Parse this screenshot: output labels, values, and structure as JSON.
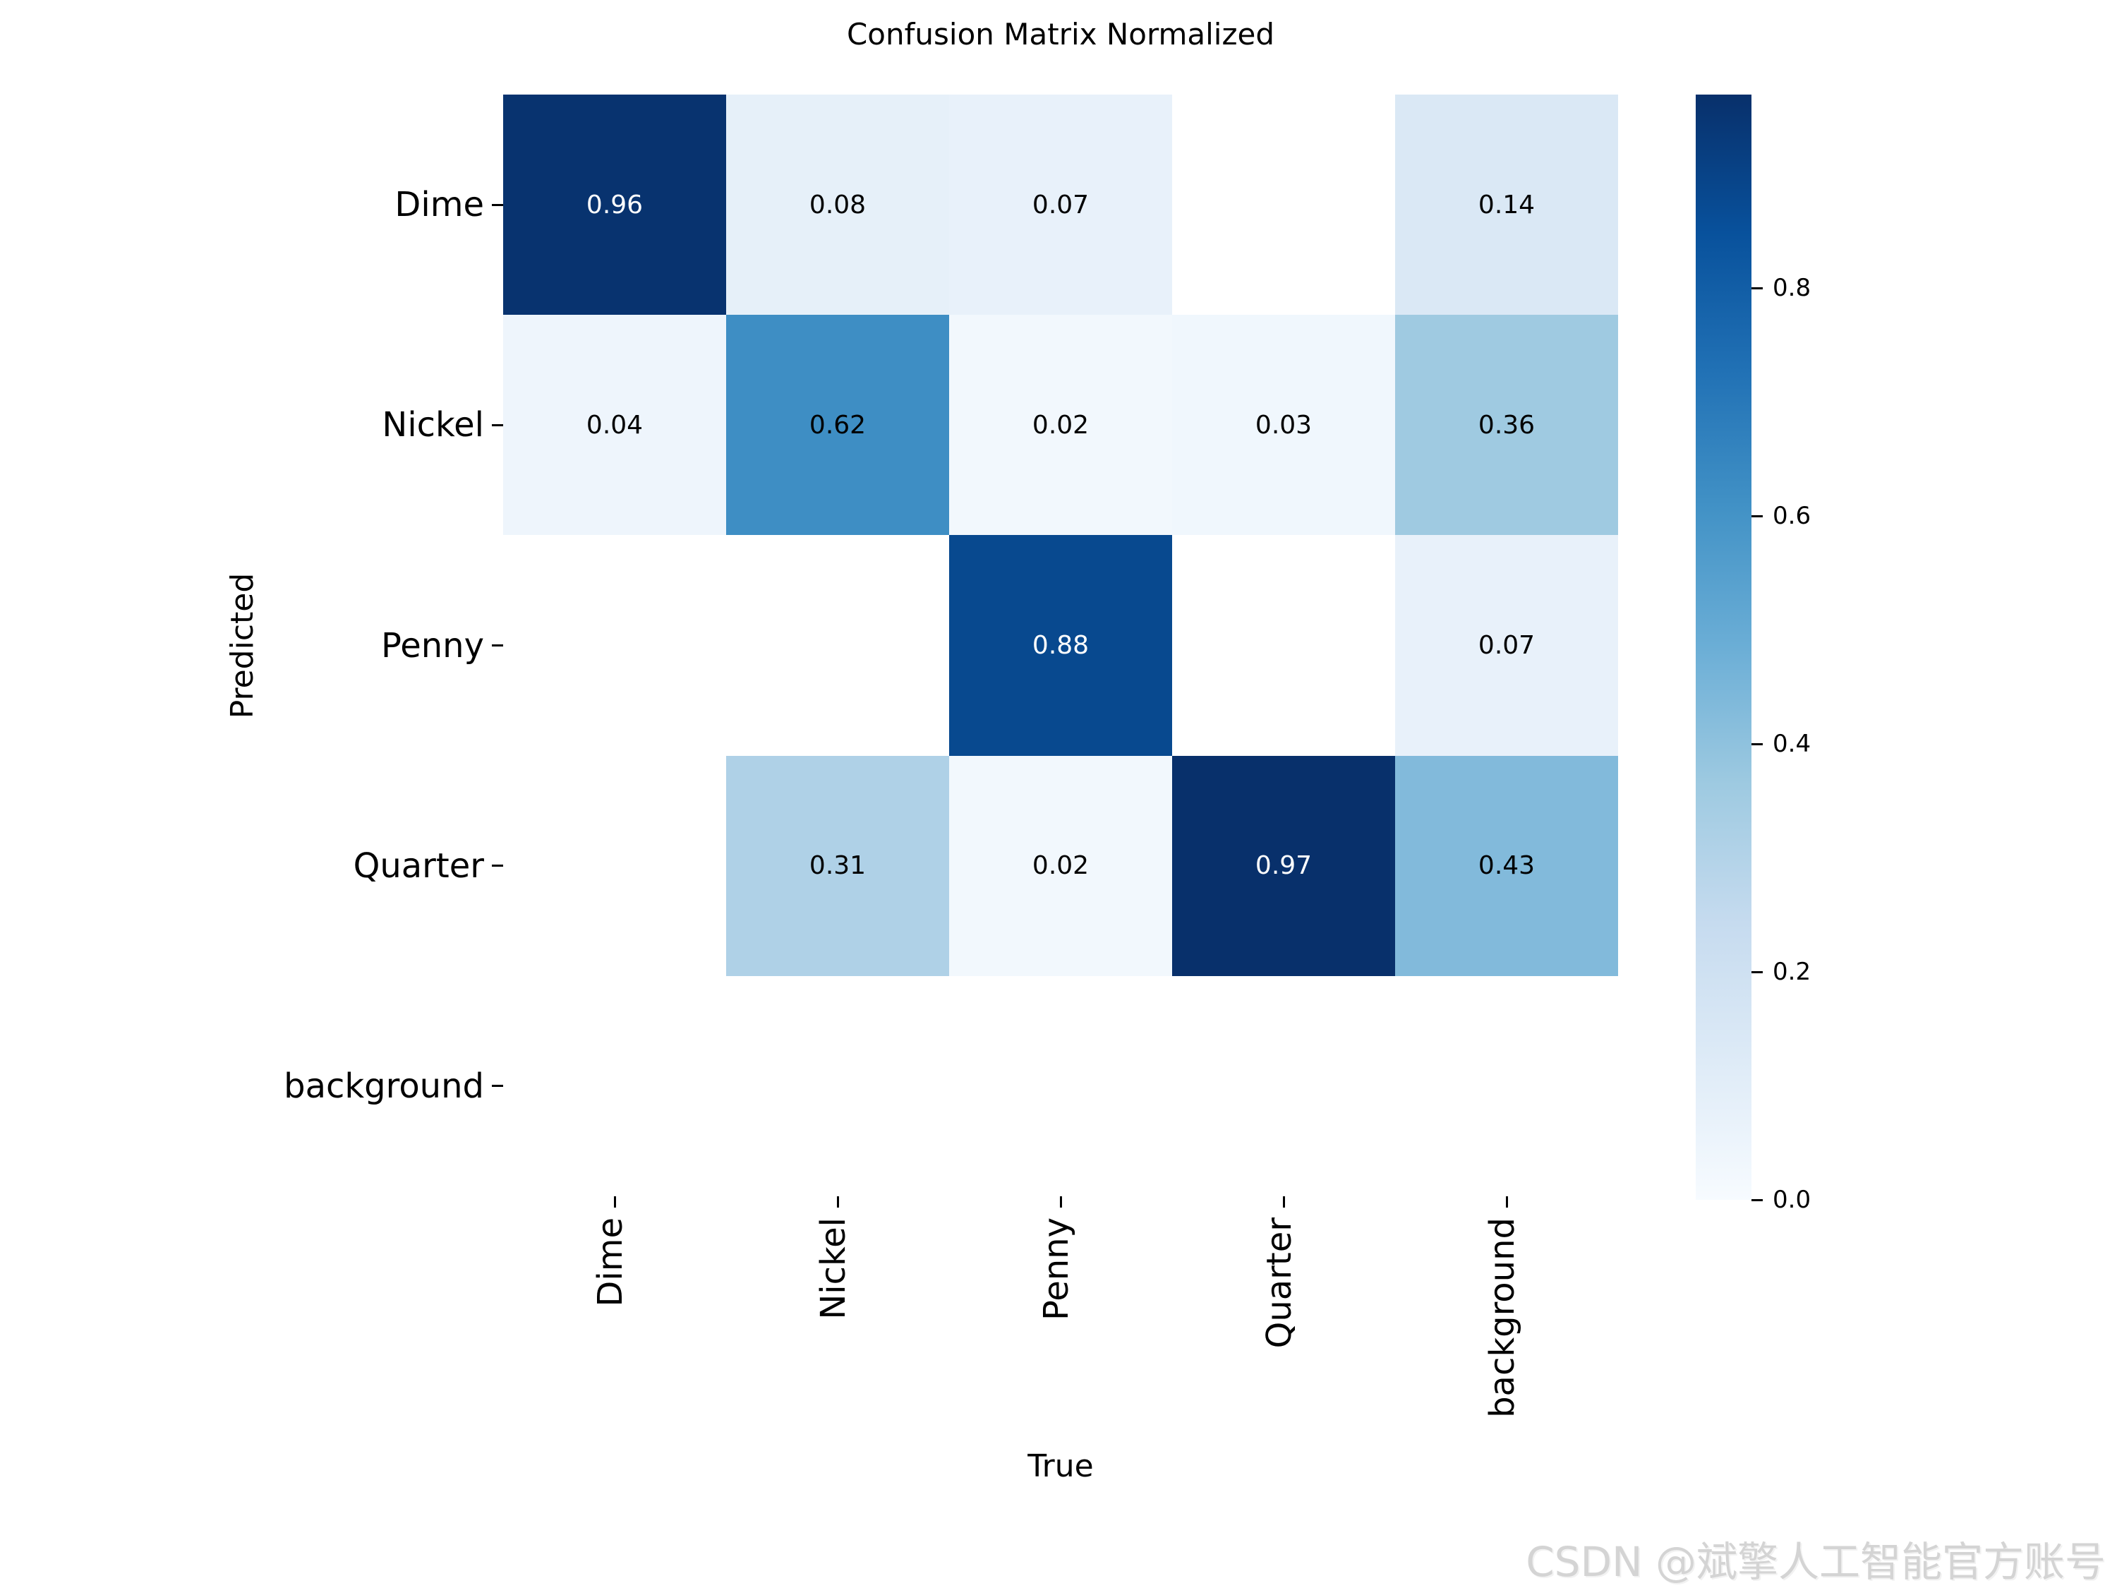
{
  "title": "Confusion Matrix Normalized",
  "axes": {
    "xlabel": "True",
    "ylabel": "Predicted"
  },
  "watermark": "CSDN @斌擎人工智能官方账号",
  "chart_data": {
    "type": "heatmap",
    "title": "Confusion Matrix Normalized",
    "xlabel": "True",
    "ylabel": "Predicted",
    "x_categories": [
      "Dime",
      "Nickel",
      "Penny",
      "Quarter",
      "background"
    ],
    "y_categories": [
      "Dime",
      "Nickel",
      "Penny",
      "Quarter",
      "background"
    ],
    "matrix": [
      [
        0.96,
        0.08,
        0.07,
        null,
        0.14
      ],
      [
        0.04,
        0.62,
        0.02,
        0.03,
        0.36
      ],
      [
        null,
        null,
        0.88,
        null,
        0.07
      ],
      [
        null,
        0.31,
        0.02,
        0.97,
        0.43
      ],
      [
        null,
        null,
        null,
        null,
        null
      ]
    ],
    "cell_labels": [
      [
        "0.96",
        "0.08",
        "0.07",
        "",
        "0.14"
      ],
      [
        "0.04",
        "0.62",
        "0.02",
        "0.03",
        "0.36"
      ],
      [
        "",
        "",
        "0.88",
        "",
        "0.07"
      ],
      [
        "",
        "0.31",
        "0.02",
        "0.97",
        "0.43"
      ],
      [
        "",
        "",
        "",
        "",
        ""
      ]
    ],
    "cell_colors": [
      [
        "#08336f",
        "#e6f0f9",
        "#e8f1fa",
        "#ffffff",
        "#dae8f5"
      ],
      [
        "#eef5fc",
        "#3e8ec4",
        "#f2f8fd",
        "#f0f7fd",
        "#9fcae1"
      ],
      [
        "#ffffff",
        "#ffffff",
        "#08498f",
        "#ffffff",
        "#e8f1fa"
      ],
      [
        "#ffffff",
        "#afd1e7",
        "#f2f8fd",
        "#08306b",
        "#82badb"
      ],
      [
        "#ffffff",
        "#ffffff",
        "#ffffff",
        "#ffffff",
        "#ffffff"
      ]
    ],
    "cell_text_colors": [
      [
        "#ffffff",
        "#000000",
        "#000000",
        "#000000",
        "#000000"
      ],
      [
        "#000000",
        "#000000",
        "#000000",
        "#000000",
        "#000000"
      ],
      [
        "#000000",
        "#000000",
        "#ffffff",
        "#000000",
        "#000000"
      ],
      [
        "#000000",
        "#000000",
        "#000000",
        "#ffffff",
        "#000000"
      ],
      [
        "#000000",
        "#000000",
        "#000000",
        "#000000",
        "#000000"
      ]
    ],
    "colormap": "Blues",
    "colormap_stops": [
      "#f7fbff",
      "#deebf7",
      "#c6dbef",
      "#9ecae1",
      "#6baed6",
      "#4292c6",
      "#2171b5",
      "#08519c",
      "#08306b"
    ],
    "vmin": 0.0,
    "vmax": 0.97,
    "colorbar_ticks": [
      0.0,
      0.2,
      0.4,
      0.6,
      0.8
    ],
    "legend_position": "right",
    "grid": false
  }
}
